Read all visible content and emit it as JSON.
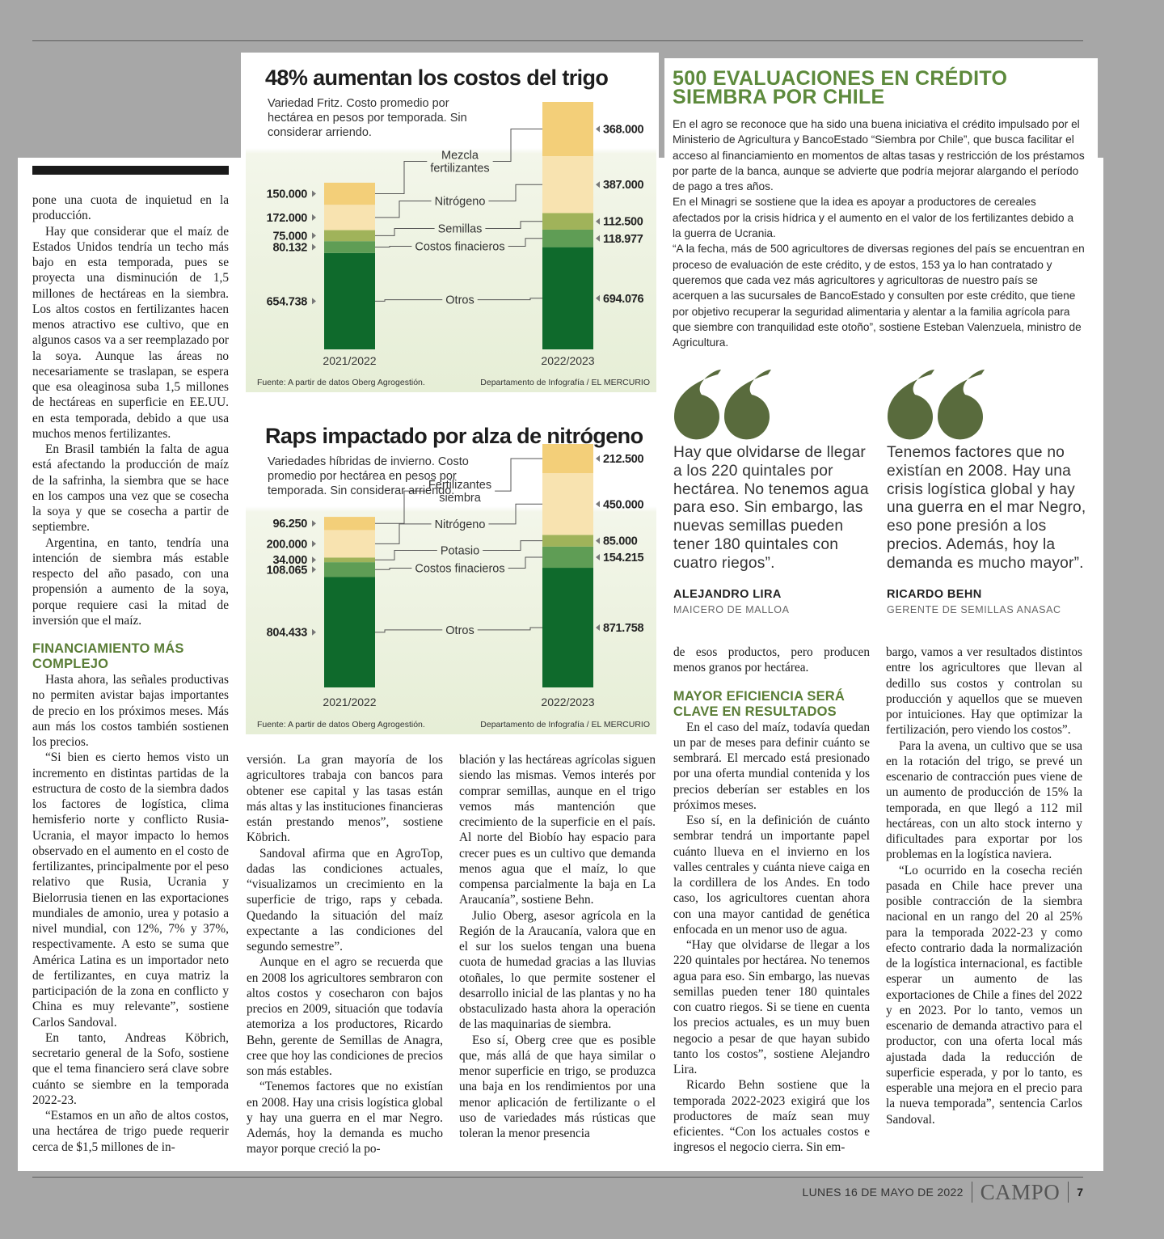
{
  "chart_data": [
    {
      "type": "bar",
      "stacked": true,
      "title": "48% aumentan los costos del trigo",
      "subtitle": "Variedad Fritz. Costo promedio por hectárea en pesos por temporada. Sin considerar arriendo.",
      "categories": [
        "2021/2022",
        "2022/2023"
      ],
      "series": [
        {
          "name": "Otros",
          "color": "#0f6a2c",
          "values": [
            654738,
            694076
          ],
          "value_labels": [
            "654.738",
            "694.076"
          ]
        },
        {
          "name": "Costos finacieros",
          "color": "#5f9d55",
          "values": [
            80132,
            118977
          ],
          "value_labels": [
            "80.132",
            "118.977"
          ]
        },
        {
          "name": "Semillas",
          "color": "#a0b35a",
          "values": [
            75000,
            112500
          ],
          "value_labels": [
            "75.000",
            "112.500"
          ]
        },
        {
          "name": "Nitrógeno",
          "color": "#f8e3b0",
          "values": [
            172000,
            387000
          ],
          "value_labels": [
            "172.000",
            "387.000"
          ]
        },
        {
          "name": "Mezcla fertilizantes",
          "color": "#f3cf79",
          "values": [
            150000,
            368000
          ],
          "value_labels": [
            "150.000",
            "368.000"
          ]
        }
      ],
      "source": "Fuente: A partir de datos Oberg Agrogestión.",
      "credit": "Departamento de Infografía / EL MERCURIO"
    },
    {
      "type": "bar",
      "stacked": true,
      "title": "Raps impactado por alza de nitrógeno",
      "subtitle": "Variedades híbridas de invierno. Costo promedio por hectárea en pesos por temporada. Sin considerar arriendo.",
      "categories": [
        "2021/2022",
        "2022/2023"
      ],
      "series": [
        {
          "name": "Otros",
          "color": "#0f6a2c",
          "values": [
            804433,
            871758
          ],
          "value_labels": [
            "804.433",
            "871.758"
          ]
        },
        {
          "name": "Costos finacieros",
          "color": "#5f9d55",
          "values": [
            108065,
            154215
          ],
          "value_labels": [
            "108.065",
            "154.215"
          ]
        },
        {
          "name": "Potasio",
          "color": "#a0b35a",
          "values": [
            34000,
            85000
          ],
          "value_labels": [
            "34.000",
            "85.000"
          ]
        },
        {
          "name": "Nitrógeno",
          "color": "#f8e3b0",
          "values": [
            200000,
            450000
          ],
          "value_labels": [
            "200.000",
            "450.000"
          ]
        },
        {
          "name": "Fertilizantes siembra",
          "color": "#f3cf79",
          "values": [
            96250,
            212500
          ],
          "value_labels": [
            "96.250",
            "212.500"
          ]
        }
      ],
      "source": "Fuente: A partir de datos Oberg Agrogestión.",
      "credit": "Departamento de Infografía / EL MERCURIO"
    }
  ],
  "sidebar": {
    "title": "500 EVALUACIONES EN CRÉDITO SIEMBRA POR CHILE",
    "paragraphs": [
      "En el agro se reconoce que ha sido una buena iniciativa el crédito impulsado por el Ministerio de Agricultura y BancoEstado “Siembra por Chile”, que busca facilitar el acceso al financiamiento en momentos de altas tasas y restricción de los préstamos por parte de la banca, aunque se advierte que podría mejorar alargando el período de pago a tres años.",
      "En el Minagri se sostiene que la idea es apoyar a productores de cereales afectados por la crisis hídrica y el aumento en el valor de los fertilizantes debido a la guerra de Ucrania.",
      "“A la fecha, más de 500 agricultores de diversas regiones del país se encuentran en proceso de evaluación de este crédito, y de estos, 153 ya lo han contratado y queremos que cada vez más agricultores y agricultoras de nuestro país se acerquen a las sucursales de BancoEstado y consulten por este crédito, que tiene por objetivo recuperar la seguridad alimentaria y alentar a la familia agrícola para que siembre con tranquilidad este otoño”, sostiene Esteban Valenzuela, ministro de Agricultura."
    ]
  },
  "quotes": [
    {
      "text": "Hay que olvidarse de llegar a los 220 quintales por hectárea. No tenemos agua para eso. Sin embargo, las nuevas semillas pueden tener 180 quintales con cuatro riegos”.",
      "name": "ALEJANDRO LIRA",
      "role": "MAICERO DE MALLOA"
    },
    {
      "text": "Tenemos factores que no existían en 2008. Hay una crisis logística global y hay una guerra en el mar Negro, eso pone presión a los precios. Además, hoy la demanda es mucho mayor”.",
      "name": "RICARDO BEHN",
      "role": "GERENTE DE SEMILLAS ANASAC"
    }
  ],
  "columns": [
    {
      "blocks": [
        {
          "text": "pone una cuota de inquietud en la producción."
        },
        {
          "text": "Hay que considerar que el maíz de Estados Unidos tendría un techo más bajo en esta temporada, pues se proyecta una disminución de 1,5 millones de hectáreas en la siembra. Los altos costos en fertilizantes hacen menos atractivo ese cultivo, que en algunos casos va a ser reemplazado por la soya. Aunque las áreas no necesariamente se traslapan, se espera que esa oleaginosa suba 1,5 millones de hectáreas en superficie en EE.UU. en esta temporada, debido a que usa muchos menos fertilizantes."
        },
        {
          "text": "En Brasil también la falta de agua está afectando la producción de maíz de la safrinha, la siembra que se hace en los campos una vez que se cosecha la soya y que se cosecha a partir de septiembre."
        },
        {
          "text": "Argentina, en tanto, tendría una intención de siembra más estable respecto del año pasado, con una propensión a aumento de la soya, porque requiere casi la mitad de inversión que el maíz."
        },
        {
          "heading": "FINANCIAMIENTO MÁS COMPLEJO"
        },
        {
          "text": "Hasta ahora, las señales productivas no permiten avistar bajas importantes de precio en los próximos meses. Más aun más los costos también sostienen los precios."
        },
        {
          "text": "“Si bien es cierto hemos visto un incremento en distintas partidas de la estructura de costo de la siembra dados los factores de logística, clima hemisferio norte y conflicto Rusia-Ucrania, el mayor impacto lo hemos observado en el aumento en el costo de fertilizantes, principalmente por el peso relativo que Rusia, Ucrania y Bielorrusia tienen en las exportaciones mundiales de amonio, urea y potasio a nivel mundial, con 12%, 7% y 37%, respectivamente. A esto se suma que América Latina es un importador neto de fertilizantes, en cuya matriz la participación de la zona en conflicto y China es muy relevante”, sostiene Carlos Sandoval."
        },
        {
          "text": "En tanto, Andreas Köbrich, secretario general de la Sofo, sostiene que el tema financiero será clave sobre cuánto se siembre en la temporada 2022-23."
        },
        {
          "text": "“Estamos en un año de altos costos, una hectárea de trigo puede requerir cerca de $1,5 millones de in-"
        }
      ]
    },
    {
      "blocks": [
        {
          "text": "versión. La gran mayoría de los agricultores trabaja con bancos para obtener ese capital y las tasas están más altas y las instituciones financieras están prestando menos”, sostiene Köbrich."
        },
        {
          "text": "Sandoval afirma que en AgroTop, dadas las condiciones actuales, “visualizamos un crecimiento en la superficie de trigo, raps y cebada. Quedando la situación del maíz expectante a las condiciones del segundo semestre”."
        },
        {
          "text": "Aunque en el agro se recuerda que en 2008 los agricultores sembraron con altos costos y cosecharon con bajos precios en 2009, situación que todavía atemoriza a los productores, Ricardo Behn, gerente de Semillas de Anagra, cree que hoy las condiciones de precios son más estables."
        },
        {
          "text": "“Tenemos factores que no existían en 2008. Hay una crisis logística global y hay una guerra en el mar Negro. Además, hoy la demanda es mucho mayor porque creció la po-"
        }
      ]
    },
    {
      "blocks": [
        {
          "text": "blación y las hectáreas agrícolas siguen siendo las mismas. Vemos interés por comprar semillas, aunque en el trigo vemos más mantención que crecimiento de la superficie en el país. Al norte del Biobío hay espacio para crecer pues es un cultivo que demanda menos agua que el maíz, lo que compensa parcialmente la baja en La Araucanía”, sostiene Behn."
        },
        {
          "text": "Julio Oberg, asesor agrícola en la Región de la Araucanía, valora que en el sur los suelos tengan una buena cuota de humedad gracias a las lluvias otoñales, lo que permite sostener el desarrollo inicial de las plantas y no ha obstaculizado hasta ahora la operación de las maquinarias de siembra."
        },
        {
          "text": "Eso sí, Oberg cree que es posible que, más allá de que haya similar o menor superficie en trigo, se produzca una baja en los rendimientos por una menor aplicación de fertilizante o el uso de variedades más rústicas que toleran la menor presencia"
        }
      ]
    },
    {
      "blocks": [
        {
          "text": "de esos productos, pero producen menos granos por hectárea."
        },
        {
          "heading": "MAYOR EFICIENCIA SERÁ CLAVE EN RESULTADOS"
        },
        {
          "text": "En el caso del maíz, todavía quedan un par de meses para definir cuánto se sembrará. El mercado está presionado por una oferta mundial contenida y los precios deberían ser estables en los próximos meses."
        },
        {
          "text": "Eso sí, en la definición de cuánto sembrar tendrá un importante papel cuánto llueva en el invierno en los valles centrales y cuánta nieve caiga en la cordillera de los Andes. En todo caso, los agricultores cuentan ahora con una mayor cantidad de genética enfocada en un menor uso de agua."
        },
        {
          "text": "“Hay que olvidarse de llegar a los 220 quintales por hectárea. No tenemos agua para eso. Sin embargo, las nuevas semillas pueden tener 180 quintales con cuatro riegos. Si se tiene en cuenta los precios actuales, es un muy buen negocio a pesar de que hayan subido tanto los costos”, sostiene Alejandro Lira."
        },
        {
          "text": "Ricardo Behn sostiene que la temporada 2022-2023 exigirá que los productores de maíz sean muy eficientes. “Con los actuales costos e ingresos el negocio cierra. Sin em-"
        }
      ]
    },
    {
      "blocks": [
        {
          "text": "bargo, vamos a ver resultados distintos entre los agricultores que llevan al dedillo sus costos y controlan su producción y aquellos que se mueven por intuiciones. Hay que optimizar la fertilización, pero viendo los costos”."
        },
        {
          "text": "Para la avena, un cultivo que se usa en la rotación del trigo, se prevé un escenario de contracción pues viene de un aumento de producción de 15% la temporada, en que llegó a 112 mil hectáreas, con un alto stock interno y dificultades para exportar por los problemas en la logística naviera."
        },
        {
          "text": "“Lo ocurrido en la cosecha recién pasada en Chile hace prever una posible contracción de la siembra nacional en un rango del 20 al 25% para la temporada 2022-23 y como efecto contrario dada la normalización de la logística internacional, es factible esperar un aumento de las exportaciones de Chile a fines del 2022 y en 2023. Por lo tanto, vemos un escenario de demanda atractivo para el productor, con una oferta local más ajustada dada la reducción de superficie esperada, y por lo tanto, es esperable una mejora en el precio para la nueva temporada”, sentencia Carlos Sandoval."
        }
      ]
    }
  ],
  "footer": {
    "date": "LUNES 16 DE MAYO DE 2022",
    "section": "CAMPO",
    "page": "7"
  }
}
